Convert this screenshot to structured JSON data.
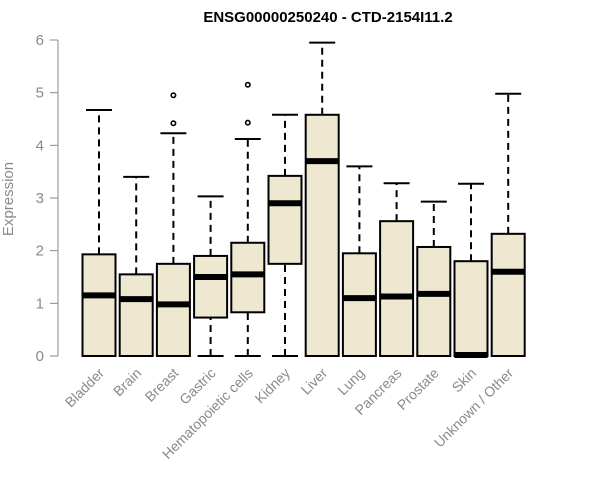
{
  "chart_data": {
    "type": "boxplot",
    "title": "ENSG00000250240 - CTD-2154I11.2",
    "xlabel": "",
    "ylabel": "Expression",
    "ylim": [
      0,
      6
    ],
    "yticks": [
      "0",
      "1",
      "2",
      "3",
      "4",
      "5",
      "6"
    ],
    "grid": false,
    "box_color": "#efe8d0",
    "categories": [
      "Bladder",
      "Brain",
      "Breast",
      "Gastric",
      "Hematopoietic cells",
      "Kidney",
      "Liver",
      "Lung",
      "Pancreas",
      "Prostate",
      "Skin",
      "Unknown / Other"
    ],
    "boxes": [
      {
        "min": 0,
        "q1": 0,
        "median": 1.15,
        "q3": 1.93,
        "max": 4.67,
        "outliers": []
      },
      {
        "min": 0,
        "q1": 0,
        "median": 1.08,
        "q3": 1.55,
        "max": 3.4,
        "outliers": []
      },
      {
        "min": 0,
        "q1": 0,
        "median": 0.98,
        "q3": 1.75,
        "max": 4.23,
        "outliers": [
          4.42,
          4.95
        ]
      },
      {
        "min": 0,
        "q1": 0.73,
        "median": 1.5,
        "q3": 1.9,
        "max": 3.03,
        "outliers": []
      },
      {
        "min": 0,
        "q1": 0.83,
        "median": 1.55,
        "q3": 2.15,
        "max": 4.12,
        "outliers": [
          4.43,
          5.15
        ]
      },
      {
        "min": 0,
        "q1": 1.75,
        "median": 2.9,
        "q3": 3.42,
        "max": 4.58,
        "outliers": []
      },
      {
        "min": 0,
        "q1": 0,
        "median": 3.7,
        "q3": 4.58,
        "max": 5.95,
        "outliers": []
      },
      {
        "min": 0,
        "q1": 0,
        "median": 1.1,
        "q3": 1.95,
        "max": 3.6,
        "outliers": []
      },
      {
        "min": 0,
        "q1": 0,
        "median": 1.13,
        "q3": 2.56,
        "max": 3.28,
        "outliers": []
      },
      {
        "min": 0,
        "q1": 0,
        "median": 1.18,
        "q3": 2.07,
        "max": 2.93,
        "outliers": []
      },
      {
        "min": 0,
        "q1": 0,
        "median": 0.02,
        "q3": 1.8,
        "max": 3.27,
        "outliers": []
      },
      {
        "min": 0,
        "q1": 0,
        "median": 1.6,
        "q3": 2.32,
        "max": 4.98,
        "outliers": []
      }
    ]
  }
}
